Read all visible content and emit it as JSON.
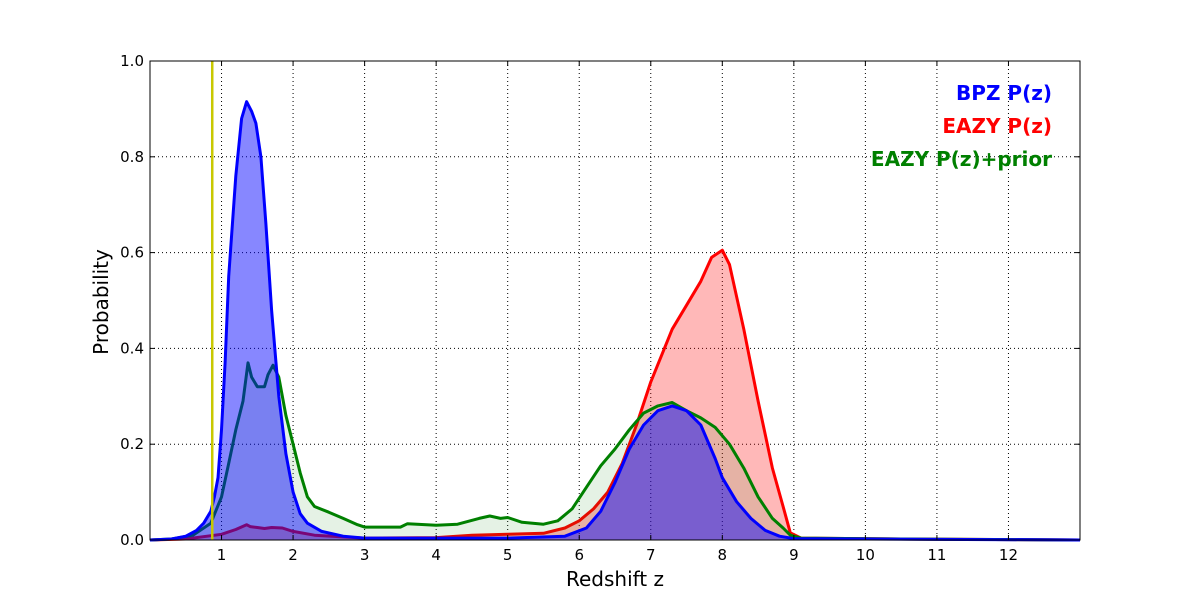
{
  "chart_data": {
    "type": "area",
    "title": "",
    "xlabel": "Redshift z",
    "ylabel": "Probability",
    "xlim": [
      0,
      13
    ],
    "ylim": [
      0,
      1.0
    ],
    "grid": true,
    "legend_placement": "top-right",
    "x_ticks": [
      1,
      2,
      3,
      4,
      5,
      6,
      7,
      8,
      9,
      10,
      11,
      12
    ],
    "x_tick_labels": [
      "1",
      "2",
      "3",
      "4",
      "5",
      "6",
      "7",
      "8",
      "9",
      "10",
      "11",
      "12"
    ],
    "y_ticks": [
      0.0,
      0.2,
      0.4,
      0.6,
      0.8,
      1.0
    ],
    "y_tick_labels": [
      "0.0",
      "0.2",
      "0.4",
      "0.6",
      "0.8",
      "1.0"
    ],
    "vline": {
      "x": 0.87,
      "color": "#c8c800"
    },
    "series": [
      {
        "name": "EAZY P(z)",
        "color": "#ff0000",
        "fill": "#ff0000",
        "fill_opacity": 0.28,
        "points": [
          [
            0,
            0
          ],
          [
            0.5,
            0.002
          ],
          [
            1.0,
            0.012
          ],
          [
            1.2,
            0.022
          ],
          [
            1.35,
            0.032
          ],
          [
            1.4,
            0.028
          ],
          [
            1.5,
            0.026
          ],
          [
            1.6,
            0.024
          ],
          [
            1.7,
            0.026
          ],
          [
            1.85,
            0.025
          ],
          [
            2.0,
            0.018
          ],
          [
            2.3,
            0.01
          ],
          [
            3.0,
            0.004
          ],
          [
            4.0,
            0.005
          ],
          [
            4.5,
            0.01
          ],
          [
            5.0,
            0.012
          ],
          [
            5.5,
            0.014
          ],
          [
            5.8,
            0.025
          ],
          [
            6.0,
            0.04
          ],
          [
            6.2,
            0.065
          ],
          [
            6.4,
            0.1
          ],
          [
            6.6,
            0.16
          ],
          [
            6.8,
            0.24
          ],
          [
            7.0,
            0.33
          ],
          [
            7.3,
            0.44
          ],
          [
            7.5,
            0.49
          ],
          [
            7.7,
            0.54
          ],
          [
            7.85,
            0.59
          ],
          [
            8.0,
            0.605
          ],
          [
            8.1,
            0.575
          ],
          [
            8.3,
            0.44
          ],
          [
            8.5,
            0.29
          ],
          [
            8.7,
            0.15
          ],
          [
            8.85,
            0.07
          ],
          [
            8.95,
            0.015
          ],
          [
            9.1,
            0.004
          ],
          [
            10.5,
            0.002
          ],
          [
            13,
            0
          ]
        ]
      },
      {
        "name": "EAZY P(z)+prior",
        "color": "#008000",
        "fill": "#008000",
        "fill_opacity": 0.1,
        "points": [
          [
            0,
            0
          ],
          [
            0.3,
            0.002
          ],
          [
            0.6,
            0.01
          ],
          [
            0.85,
            0.035
          ],
          [
            1.0,
            0.09
          ],
          [
            1.1,
            0.16
          ],
          [
            1.2,
            0.23
          ],
          [
            1.3,
            0.29
          ],
          [
            1.37,
            0.37
          ],
          [
            1.42,
            0.34
          ],
          [
            1.5,
            0.32
          ],
          [
            1.6,
            0.32
          ],
          [
            1.65,
            0.345
          ],
          [
            1.72,
            0.365
          ],
          [
            1.8,
            0.34
          ],
          [
            1.9,
            0.26
          ],
          [
            2.0,
            0.2
          ],
          [
            2.1,
            0.14
          ],
          [
            2.2,
            0.09
          ],
          [
            2.3,
            0.07
          ],
          [
            2.5,
            0.058
          ],
          [
            2.7,
            0.045
          ],
          [
            2.9,
            0.032
          ],
          [
            3.0,
            0.027
          ],
          [
            3.5,
            0.027
          ],
          [
            3.6,
            0.034
          ],
          [
            4.0,
            0.031
          ],
          [
            4.3,
            0.033
          ],
          [
            4.6,
            0.045
          ],
          [
            4.75,
            0.05
          ],
          [
            4.9,
            0.045
          ],
          [
            5.0,
            0.047
          ],
          [
            5.2,
            0.037
          ],
          [
            5.5,
            0.033
          ],
          [
            5.7,
            0.04
          ],
          [
            5.9,
            0.065
          ],
          [
            6.1,
            0.11
          ],
          [
            6.3,
            0.155
          ],
          [
            6.5,
            0.19
          ],
          [
            6.7,
            0.23
          ],
          [
            6.9,
            0.265
          ],
          [
            7.1,
            0.28
          ],
          [
            7.3,
            0.287
          ],
          [
            7.5,
            0.27
          ],
          [
            7.7,
            0.255
          ],
          [
            7.9,
            0.235
          ],
          [
            8.1,
            0.2
          ],
          [
            8.3,
            0.15
          ],
          [
            8.5,
            0.09
          ],
          [
            8.7,
            0.045
          ],
          [
            8.85,
            0.025
          ],
          [
            8.95,
            0.01
          ],
          [
            9.1,
            0.004
          ],
          [
            10.5,
            0.002
          ],
          [
            13,
            0
          ]
        ]
      },
      {
        "name": "BPZ P(z)",
        "color": "#0000ff",
        "fill": "#0000ff",
        "fill_opacity": 0.47,
        "points": [
          [
            0,
            0
          ],
          [
            0.3,
            0.002
          ],
          [
            0.5,
            0.008
          ],
          [
            0.65,
            0.02
          ],
          [
            0.75,
            0.035
          ],
          [
            0.85,
            0.06
          ],
          [
            0.9,
            0.09
          ],
          [
            0.95,
            0.13
          ],
          [
            1.0,
            0.23
          ],
          [
            1.05,
            0.37
          ],
          [
            1.1,
            0.55
          ],
          [
            1.2,
            0.76
          ],
          [
            1.28,
            0.88
          ],
          [
            1.35,
            0.915
          ],
          [
            1.42,
            0.895
          ],
          [
            1.48,
            0.87
          ],
          [
            1.55,
            0.8
          ],
          [
            1.62,
            0.66
          ],
          [
            1.7,
            0.48
          ],
          [
            1.8,
            0.3
          ],
          [
            1.9,
            0.18
          ],
          [
            2.0,
            0.1
          ],
          [
            2.1,
            0.055
          ],
          [
            2.2,
            0.035
          ],
          [
            2.4,
            0.018
          ],
          [
            2.7,
            0.008
          ],
          [
            3.0,
            0.004
          ],
          [
            5.0,
            0.004
          ],
          [
            5.8,
            0.008
          ],
          [
            6.1,
            0.025
          ],
          [
            6.3,
            0.06
          ],
          [
            6.5,
            0.12
          ],
          [
            6.7,
            0.19
          ],
          [
            6.9,
            0.24
          ],
          [
            7.1,
            0.27
          ],
          [
            7.3,
            0.28
          ],
          [
            7.5,
            0.27
          ],
          [
            7.7,
            0.24
          ],
          [
            7.9,
            0.17
          ],
          [
            8.0,
            0.13
          ],
          [
            8.2,
            0.08
          ],
          [
            8.4,
            0.045
          ],
          [
            8.6,
            0.02
          ],
          [
            8.8,
            0.008
          ],
          [
            9.0,
            0.003
          ],
          [
            13,
            0
          ]
        ]
      }
    ],
    "legend": [
      {
        "label": "BPZ P(z)",
        "color": "#0000ff"
      },
      {
        "label": "EAZY P(z)",
        "color": "#ff0000"
      },
      {
        "label": "EAZY P(z)+prior",
        "color": "#008000"
      }
    ]
  }
}
